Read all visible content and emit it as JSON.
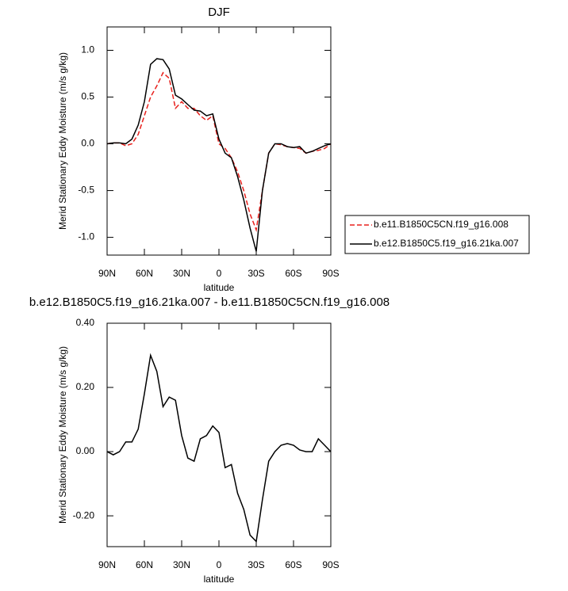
{
  "chart_data": [
    {
      "type": "line",
      "title": "DJF",
      "x_label": "latitude",
      "y_label": "Merid Stationary Eddy Moisture (m/s g/kg)",
      "x": [
        90,
        85,
        80,
        75,
        70,
        65,
        60,
        55,
        50,
        45,
        40,
        35,
        30,
        25,
        20,
        15,
        10,
        5,
        0,
        -5,
        -10,
        -15,
        -20,
        -25,
        -30,
        -35,
        -40,
        -45,
        -50,
        -55,
        -60,
        -65,
        -70,
        -75,
        -80,
        -85,
        -90
      ],
      "xlim": [
        90,
        -90
      ],
      "xticks": [
        {
          "value": 90,
          "label": "90N"
        },
        {
          "value": 60,
          "label": "60N"
        },
        {
          "value": 30,
          "label": "30N"
        },
        0,
        {
          "value": -30,
          "label": "30S"
        },
        {
          "value": -60,
          "label": "60S"
        },
        {
          "value": -90,
          "label": "90S"
        }
      ],
      "ylim": [
        -1.19,
        1.25
      ],
      "yticks": [
        {
          "value": -1,
          "label": "-1.0"
        },
        -0.5,
        {
          "value": 0,
          "label": "0.0"
        },
        0.5,
        {
          "value": 1,
          "label": "1.0"
        }
      ],
      "legend": "right",
      "series": [
        {
          "name": "b.e11.B1850C5CN.f19_g16.008",
          "color": "#e8211d",
          "line_style": "dashed",
          "values": [
            0,
            0.01,
            0.01,
            -0.02,
            0.0,
            0.1,
            0.3,
            0.5,
            0.62,
            0.76,
            0.7,
            0.38,
            0.45,
            0.38,
            0.38,
            0.3,
            0.25,
            0.3,
            0.0,
            -0.05,
            -0.15,
            -0.3,
            -0.5,
            -0.75,
            -0.92,
            -0.5,
            -0.1,
            0.0,
            -0.01,
            -0.03,
            -0.04,
            -0.05,
            -0.1,
            -0.08,
            -0.07,
            -0.05,
            0
          ]
        },
        {
          "name": "b.e12.B1850C5.f19_g16.21ka.007",
          "color": "#000000",
          "line_style": "solid",
          "values": [
            0,
            0.01,
            0.01,
            0.0,
            0.05,
            0.2,
            0.45,
            0.85,
            0.91,
            0.9,
            0.8,
            0.52,
            0.48,
            0.42,
            0.36,
            0.35,
            0.3,
            0.32,
            0.05,
            -0.1,
            -0.15,
            -0.35,
            -0.6,
            -0.9,
            -1.15,
            -0.5,
            -0.1,
            0.0,
            0.0,
            -0.03,
            -0.04,
            -0.03,
            -0.1,
            -0.08,
            -0.05,
            -0.02,
            0
          ]
        }
      ]
    },
    {
      "type": "line",
      "title": "b.e12.B1850C5.f19_g16.21ka.007 - b.e11.B1850C5CN.f19_g16.008",
      "x_label": "latitude",
      "y_label": "Merid Stationary Eddy Moisture (m/s g/kg)",
      "x": [
        90,
        85,
        80,
        75,
        70,
        65,
        60,
        55,
        50,
        45,
        40,
        35,
        30,
        25,
        20,
        15,
        10,
        5,
        0,
        -5,
        -10,
        -15,
        -20,
        -25,
        -30,
        -35,
        -40,
        -45,
        -50,
        -55,
        -60,
        -65,
        -70,
        -75,
        -80,
        -85,
        -90
      ],
      "xlim": [
        90,
        -90
      ],
      "xticks": [
        {
          "value": 90,
          "label": "90N"
        },
        {
          "value": 60,
          "label": "60N"
        },
        {
          "value": 30,
          "label": "30N"
        },
        0,
        {
          "value": -30,
          "label": "30S"
        },
        {
          "value": -60,
          "label": "60S"
        },
        {
          "value": -90,
          "label": "90S"
        }
      ],
      "ylim": [
        -0.296,
        0.4
      ],
      "yticks": [
        {
          "value": -0.2,
          "label": "-0.20"
        },
        {
          "value": 0,
          "label": "0.00"
        },
        {
          "value": 0.2,
          "label": "0.20"
        },
        {
          "value": 0.4,
          "label": "0.40"
        }
      ],
      "series": [
        {
          "color": "#000000",
          "line_style": "solid",
          "values": [
            0.0,
            -0.01,
            0.0,
            0.03,
            0.03,
            0.07,
            0.18,
            0.3,
            0.25,
            0.14,
            0.17,
            0.16,
            0.05,
            -0.02,
            -0.03,
            0.04,
            0.05,
            0.08,
            0.06,
            -0.05,
            -0.04,
            -0.13,
            -0.18,
            -0.26,
            -0.28,
            -0.15,
            -0.03,
            0.0,
            0.02,
            0.025,
            0.02,
            0.005,
            0.0,
            0.0,
            0.04,
            0.02,
            0.0
          ]
        }
      ]
    }
  ]
}
